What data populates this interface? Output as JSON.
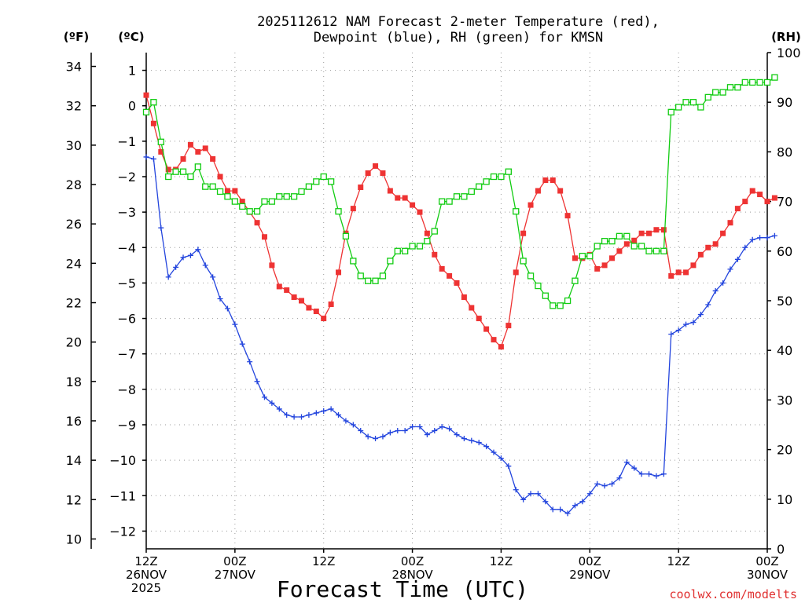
{
  "chart_data": {
    "type": "line",
    "title_line1": "2025112612 NAM Forecast 2-meter Temperature (red),",
    "title_line2": "Dewpoint (blue), RH (green) for KMSN",
    "xlabel": "Forecast Time (UTC)",
    "credit": "coolwx.com/modelts",
    "units": {
      "f": "(ºF)",
      "c": "(ºC)",
      "rh": "(RH)"
    },
    "colors": {
      "temp": "#ee3333",
      "dewpoint": "#2244dd",
      "rh": "#11cc11",
      "axis": "#000000",
      "grid": "#9a9a9a",
      "credit": "#e03030"
    },
    "x_range_hours": [
      0,
      84
    ],
    "x_ticks": [
      {
        "h": 0,
        "line1": "12Z",
        "line2": "26NOV",
        "line3": "2025"
      },
      {
        "h": 12,
        "line1": "00Z",
        "line2": "27NOV",
        "line3": ""
      },
      {
        "h": 24,
        "line1": "12Z",
        "line2": "",
        "line3": ""
      },
      {
        "h": 36,
        "line1": "00Z",
        "line2": "28NOV",
        "line3": ""
      },
      {
        "h": 48,
        "line1": "12Z",
        "line2": "",
        "line3": ""
      },
      {
        "h": 60,
        "line1": "00Z",
        "line2": "29NOV",
        "line3": ""
      },
      {
        "h": 72,
        "line1": "12Z",
        "line2": "",
        "line3": ""
      },
      {
        "h": 84,
        "line1": "00Z",
        "line2": "30NOV",
        "line3": ""
      }
    ],
    "celsius_axis": {
      "range": [
        -12.5,
        1.5
      ],
      "ticks": [
        1,
        0,
        -1,
        -2,
        -3,
        -4,
        -5,
        -6,
        -7,
        -8,
        -9,
        -10,
        -11,
        -12
      ]
    },
    "fahrenheit_axis": {
      "range": [
        9.5,
        34.7
      ],
      "ticks": [
        34,
        32,
        30,
        28,
        26,
        24,
        22,
        20,
        18,
        16,
        14,
        12,
        10
      ]
    },
    "rh_axis": {
      "range": [
        0,
        100
      ],
      "ticks": [
        100,
        90,
        80,
        70,
        60,
        50,
        40,
        30,
        20,
        10,
        0
      ]
    },
    "series": [
      {
        "name": "Temperature",
        "unit": "C",
        "marker": "filled-square",
        "values": [
          0.3,
          -0.5,
          -1.3,
          -1.8,
          -1.8,
          -1.5,
          -1.1,
          -1.3,
          -1.2,
          -1.5,
          -2.0,
          -2.4,
          -2.4,
          -2.7,
          -3.0,
          -3.3,
          -3.7,
          -4.5,
          -5.1,
          -5.2,
          -5.4,
          -5.5,
          -5.7,
          -5.8,
          -6.0,
          -5.6,
          -4.7,
          -3.6,
          -2.9,
          -2.3,
          -1.9,
          -1.7,
          -1.9,
          -2.4,
          -2.6,
          -2.6,
          -2.8,
          -3.0,
          -3.6,
          -4.2,
          -4.6,
          -4.8,
          -5.0,
          -5.4,
          -5.7,
          -6.0,
          -6.3,
          -6.6,
          -6.8,
          -6.2,
          -4.7,
          -3.6,
          -2.8,
          -2.4,
          -2.1,
          -2.1,
          -2.4,
          -3.1,
          -4.3,
          -4.3,
          -4.2,
          -4.6,
          -4.5,
          -4.3,
          -4.1,
          -3.9,
          -3.8,
          -3.6,
          -3.6,
          -3.5,
          -3.5,
          -4.8,
          -4.7,
          -4.7,
          -4.5,
          -4.2,
          -4.0,
          -3.9,
          -3.6,
          -3.3,
          -2.9,
          -2.7,
          -2.4,
          -2.5,
          -2.7,
          -2.6
        ]
      },
      {
        "name": "Dewpoint",
        "unit": "F",
        "marker": "plus",
        "values": [
          29.4,
          29.3,
          25.8,
          23.3,
          23.8,
          24.3,
          24.4,
          24.7,
          23.9,
          23.3,
          22.2,
          21.7,
          20.9,
          19.9,
          19.0,
          18.0,
          17.2,
          16.9,
          16.6,
          16.3,
          16.2,
          16.2,
          16.3,
          16.4,
          16.5,
          16.6,
          16.3,
          16.0,
          15.8,
          15.5,
          15.2,
          15.1,
          15.2,
          15.4,
          15.5,
          15.5,
          15.7,
          15.7,
          15.3,
          15.5,
          15.7,
          15.6,
          15.3,
          15.1,
          15.0,
          14.9,
          14.7,
          14.4,
          14.1,
          13.7,
          12.5,
          12.0,
          12.3,
          12.3,
          11.9,
          11.5,
          11.5,
          11.3,
          11.7,
          11.9,
          12.3,
          12.8,
          12.7,
          12.8,
          13.1,
          13.9,
          13.6,
          13.3,
          13.3,
          13.2,
          13.3,
          20.4,
          20.6,
          20.9,
          21.0,
          21.4,
          21.9,
          22.6,
          23.0,
          23.7,
          24.2,
          24.8,
          25.2,
          25.3,
          25.3,
          25.4
        ]
      },
      {
        "name": "Relative Humidity",
        "unit": "%",
        "marker": "open-square",
        "values": [
          88,
          90,
          82,
          75,
          76,
          76,
          75,
          77,
          73,
          73,
          72,
          71,
          70,
          69,
          68,
          68,
          70,
          70,
          71,
          71,
          71,
          72,
          73,
          74,
          75,
          74,
          68,
          63,
          58,
          55,
          54,
          54,
          55,
          58,
          60,
          60,
          61,
          61,
          62,
          64,
          70,
          70,
          71,
          71,
          72,
          73,
          74,
          75,
          75,
          76,
          68,
          58,
          55,
          53,
          51,
          49,
          49,
          50,
          54,
          59,
          59,
          61,
          62,
          62,
          63,
          63,
          61,
          61,
          60,
          60,
          60,
          88,
          89,
          90,
          90,
          89,
          91,
          92,
          92,
          93,
          93,
          94,
          94,
          94,
          94,
          95
        ]
      }
    ]
  }
}
